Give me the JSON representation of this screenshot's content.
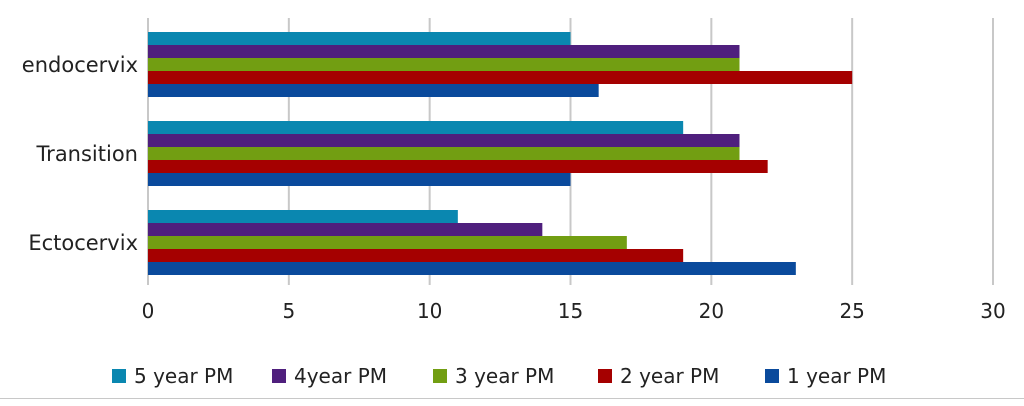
{
  "chart_data": {
    "type": "bar",
    "orientation": "horizontal",
    "categories": [
      "endocervix",
      "Transition",
      "Ectocervix"
    ],
    "series": [
      {
        "name": "5 year PM",
        "color": "#0a87b0",
        "values": [
          15,
          19,
          11
        ]
      },
      {
        "name": "4year PM",
        "color": "#4f1f7d",
        "values": [
          21,
          21,
          14
        ]
      },
      {
        "name": "3 year PM",
        "color": "#729e12",
        "values": [
          21,
          21,
          17
        ]
      },
      {
        "name": "2 year PM",
        "color": "#a50000",
        "values": [
          25,
          22,
          19
        ]
      },
      {
        "name": "1 year PM",
        "color": "#0a4a9c",
        "values": [
          16,
          15,
          23
        ]
      }
    ],
    "xlim": [
      0,
      30
    ],
    "xticks": [
      "0",
      "5",
      "10",
      "15",
      "20",
      "25",
      "30"
    ],
    "grid": true,
    "legend": "bottom"
  }
}
